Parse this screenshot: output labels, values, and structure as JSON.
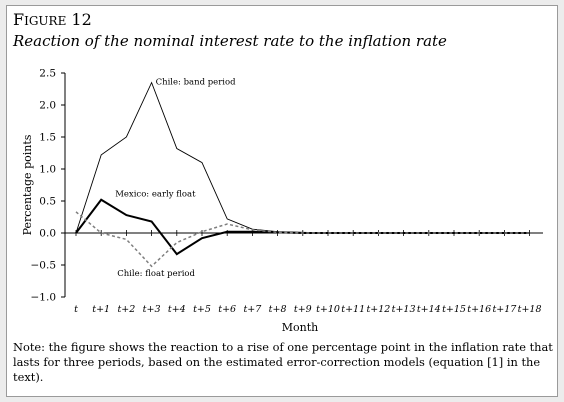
{
  "figure": {
    "label": "Figure 12",
    "title": "Reaction of the nominal interest rate to the inflation rate",
    "note": "Note: the figure shows the reaction to a rise of one percentage point in the inflation rate that lasts for three periods, based on the estimated error-correction models (equation [1] in the text)."
  },
  "chart_data": {
    "type": "line",
    "title": "",
    "xlabel": "Month",
    "ylabel": "Percentage points",
    "ylim": [
      -1.0,
      2.5
    ],
    "yticks": [
      "2.5",
      "2.0",
      "1.5",
      "1.0",
      "0.5",
      "0.0",
      "−0.5",
      "−1.0"
    ],
    "ytick_values": [
      2.5,
      2.0,
      1.5,
      1.0,
      0.5,
      0.0,
      -0.5,
      -1.0
    ],
    "categories": [
      "t",
      "t+1",
      "t+2",
      "t+3",
      "t+4",
      "t+5",
      "t+6",
      "t+7",
      "t+8",
      "t+9",
      "t+10",
      "t+11",
      "t+12",
      "t+13",
      "t+14",
      "t+15",
      "t+16",
      "t+17",
      "t+18"
    ],
    "grid": false,
    "series": [
      {
        "name": "Chile: band period",
        "style": "thin-solid",
        "color": "#000000",
        "values": [
          0.0,
          1.22,
          1.5,
          2.35,
          1.32,
          1.1,
          0.22,
          0.06,
          0.02,
          0.01,
          0.0,
          0.0,
          0.0,
          0.0,
          0.0,
          0.0,
          0.0,
          0.0,
          0.0
        ]
      },
      {
        "name": "Mexico: early float",
        "style": "thick-solid",
        "color": "#000000",
        "values": [
          0.0,
          0.52,
          0.28,
          0.18,
          -0.33,
          -0.08,
          0.02,
          0.02,
          0.01,
          0.0,
          0.0,
          0.0,
          0.0,
          0.0,
          0.0,
          0.0,
          0.0,
          0.0,
          0.0
        ]
      },
      {
        "name": "Chile: float period",
        "style": "dashed",
        "color": "#7f7f7f",
        "values": [
          0.33,
          0.0,
          -0.1,
          -0.52,
          -0.15,
          0.02,
          0.14,
          0.05,
          0.01,
          0.0,
          0.0,
          0.0,
          0.0,
          0.0,
          0.0,
          0.0,
          0.0,
          0.0,
          0.0
        ]
      }
    ]
  }
}
